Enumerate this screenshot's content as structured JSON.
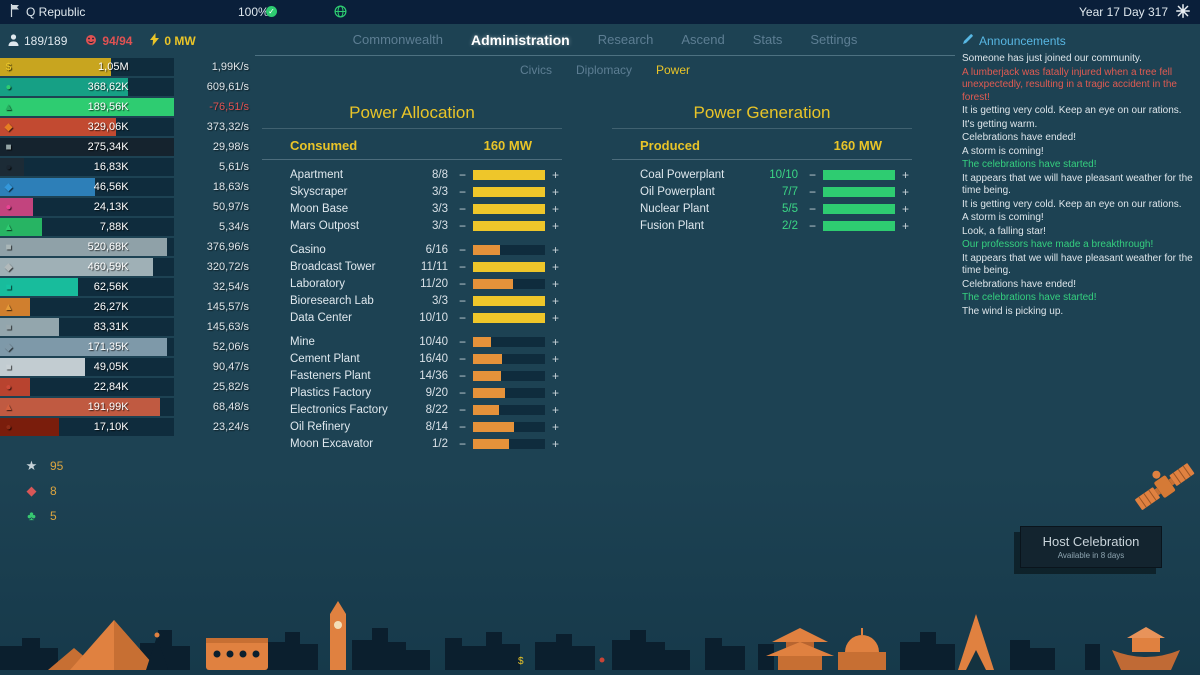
{
  "top_bar": {
    "republic_name": "Q Republic",
    "progress_percent": "100%",
    "date": "Year 17 Day 317"
  },
  "status_bar": {
    "population": "189/189",
    "happiness": "94/94",
    "power": "0 MW"
  },
  "nav": {
    "tabs": [
      "Commonwealth",
      "Administration",
      "Research",
      "Ascend",
      "Stats",
      "Settings"
    ],
    "active_tab": "Administration",
    "subtabs": [
      "Civics",
      "Diplomacy",
      "Power"
    ],
    "active_subtab": "Power"
  },
  "colors": {
    "accent_yellow": "#eec62a",
    "bar_orange": "#e5923a",
    "bar_green": "#2ecc71",
    "count_light": "#d9e1e7",
    "count_green": "#3bd685",
    "alert_red": "#e05b52",
    "good_green": "#35d07f",
    "announce_blue": "#58b7e3"
  },
  "resources": [
    {
      "value": "1,05M",
      "rate": "1,99K/s",
      "fill": 64,
      "bar_color": "#c8a51f",
      "icon_color": "#e9c428",
      "glyph": "$"
    },
    {
      "value": "368,62K",
      "rate": "609,61/s",
      "fill": 74,
      "bar_color": "#16a085",
      "icon_color": "#2ecc71",
      "glyph": "●"
    },
    {
      "value": "189,56K",
      "rate": "-76,51/s",
      "fill": 100,
      "bar_color": "#2ecc71",
      "icon_color": "#27ae60",
      "glyph": "▲"
    },
    {
      "value": "329,06K",
      "rate": "373,32/s",
      "fill": 67,
      "bar_color": "#c24a31",
      "icon_color": "#e67e22",
      "glyph": "◆"
    },
    {
      "value": "275,34K",
      "rate": "29,98/s",
      "fill": 100,
      "bar_color": "#15232e",
      "icon_color": "#95a5a6",
      "glyph": "■"
    },
    {
      "value": "16,83K",
      "rate": "5,61/s",
      "fill": 14,
      "bar_color": "#1c2b36",
      "icon_color": "#1b2631",
      "glyph": "●"
    },
    {
      "value": "46,56K",
      "rate": "18,63/s",
      "fill": 55,
      "bar_color": "#2d7fb8",
      "icon_color": "#3498db",
      "glyph": "◆"
    },
    {
      "value": "24,13K",
      "rate": "50,97/s",
      "fill": 19,
      "bar_color": "#c2447e",
      "icon_color": "#e84393",
      "glyph": "●"
    },
    {
      "value": "7,88K",
      "rate": "5,34/s",
      "fill": 24,
      "bar_color": "#27b463",
      "icon_color": "#2ecc71",
      "glyph": "▲"
    },
    {
      "value": "520,68K",
      "rate": "376,96/s",
      "fill": 96,
      "bar_color": "#8fa1a8",
      "icon_color": "#aab7b8",
      "glyph": "■"
    },
    {
      "value": "460,59K",
      "rate": "320,72/s",
      "fill": 88,
      "bar_color": "#9fb0b6",
      "icon_color": "#b2babb",
      "glyph": "◆"
    },
    {
      "value": "62,56K",
      "rate": "32,54/s",
      "fill": 45,
      "bar_color": "#18bc9c",
      "icon_color": "#17c3a2",
      "glyph": "■"
    },
    {
      "value": "26,27K",
      "rate": "145,57/s",
      "fill": 17,
      "bar_color": "#d07f2e",
      "icon_color": "#e59b38",
      "glyph": "▲"
    },
    {
      "value": "83,31K",
      "rate": "145,63/s",
      "fill": 34,
      "bar_color": "#93a6ad",
      "icon_color": "#99a8ad",
      "glyph": "■"
    },
    {
      "value": "171,35K",
      "rate": "52,06/s",
      "fill": 96,
      "bar_color": "#7e99a9",
      "icon_color": "#8099a8",
      "glyph": "◆"
    },
    {
      "value": "49,05K",
      "rate": "90,47/s",
      "fill": 49,
      "bar_color": "#c2ccd1",
      "icon_color": "#c8d0d4",
      "glyph": "■"
    },
    {
      "value": "22,84K",
      "rate": "25,82/s",
      "fill": 17,
      "bar_color": "#b8432f",
      "icon_color": "#cd4a38",
      "glyph": "●"
    },
    {
      "value": "191,99K",
      "rate": "68,48/s",
      "fill": 92,
      "bar_color": "#c05a41",
      "icon_color": "#d2603f",
      "glyph": "▲"
    },
    {
      "value": "17,10K",
      "rate": "23,24/s",
      "fill": 34,
      "bar_color": "#7a1d0c",
      "icon_color": "#8e2b16",
      "glyph": "●"
    }
  ],
  "scores": [
    {
      "value": "95",
      "icon": "star-icon",
      "glyph": "★",
      "icon_color": "#c7d3d9"
    },
    {
      "value": "8",
      "icon": "badge-icon",
      "glyph": "◆",
      "icon_color": "#d95757"
    },
    {
      "value": "5",
      "icon": "sprout-icon",
      "glyph": "♣",
      "icon_color": "#37c871"
    }
  ],
  "power_allocation": {
    "title": "Power Allocation",
    "consumed_label": "Consumed",
    "total": "160 MW",
    "groups": [
      [
        {
          "name": "Apartment",
          "count": "8/8"
        },
        {
          "name": "Skyscraper",
          "count": "3/3"
        },
        {
          "name": "Moon Base",
          "count": "3/3"
        },
        {
          "name": "Mars Outpost",
          "count": "3/3"
        }
      ],
      [
        {
          "name": "Casino",
          "count": "6/16"
        },
        {
          "name": "Broadcast Tower",
          "count": "11/11"
        },
        {
          "name": "Laboratory",
          "count": "11/20"
        },
        {
          "name": "Bioresearch Lab",
          "count": "3/3"
        },
        {
          "name": "Data Center",
          "count": "10/10"
        }
      ],
      [
        {
          "name": "Mine",
          "count": "10/40"
        },
        {
          "name": "Cement Plant",
          "count": "16/40"
        },
        {
          "name": "Fasteners Plant",
          "count": "14/36"
        },
        {
          "name": "Plastics Factory",
          "count": "9/20"
        },
        {
          "name": "Electronics Factory",
          "count": "8/22"
        },
        {
          "name": "Oil Refinery",
          "count": "8/14"
        },
        {
          "name": "Moon Excavator",
          "count": "1/2"
        }
      ]
    ]
  },
  "power_generation": {
    "title": "Power Generation",
    "produced_label": "Produced",
    "total": "160 MW",
    "plants": [
      {
        "name": "Coal Powerplant",
        "count": "10/10"
      },
      {
        "name": "Oil Powerplant",
        "count": "7/7"
      },
      {
        "name": "Nuclear Plant",
        "count": "5/5"
      },
      {
        "name": "Fusion Plant",
        "count": "2/2"
      }
    ]
  },
  "announcements": {
    "title": "Announcements",
    "items": [
      {
        "text": "Someone has just joined our community.",
        "tone": "normal"
      },
      {
        "text": "A lumberjack was fatally injured when a tree fell unexpectedly, resulting in a tragic accident in the forest!",
        "tone": "alert"
      },
      {
        "text": "It is getting very cold. Keep an eye on our rations.",
        "tone": "normal"
      },
      {
        "text": "It's getting warm.",
        "tone": "normal"
      },
      {
        "text": "Celebrations have ended!",
        "tone": "normal"
      },
      {
        "text": "A storm is coming!",
        "tone": "normal"
      },
      {
        "text": "The celebrations have started!",
        "tone": "good"
      },
      {
        "text": "It appears that we will have pleasant weather for the time being.",
        "tone": "normal"
      },
      {
        "text": "It is getting very cold. Keep an eye on our rations.",
        "tone": "normal"
      },
      {
        "text": "A storm is coming!",
        "tone": "normal"
      },
      {
        "text": "Look, a falling star!",
        "tone": "normal"
      },
      {
        "text": "Our professors have made a breakthrough!",
        "tone": "good"
      },
      {
        "text": "It appears that we will have pleasant weather for the time being.",
        "tone": "normal"
      },
      {
        "text": "Celebrations have ended!",
        "tone": "normal"
      },
      {
        "text": "The celebrations have started!",
        "tone": "good"
      },
      {
        "text": "The wind is picking up.",
        "tone": "normal"
      }
    ]
  },
  "celebration_button": {
    "label": "Host Celebration",
    "availability": "Available in 8 days"
  }
}
